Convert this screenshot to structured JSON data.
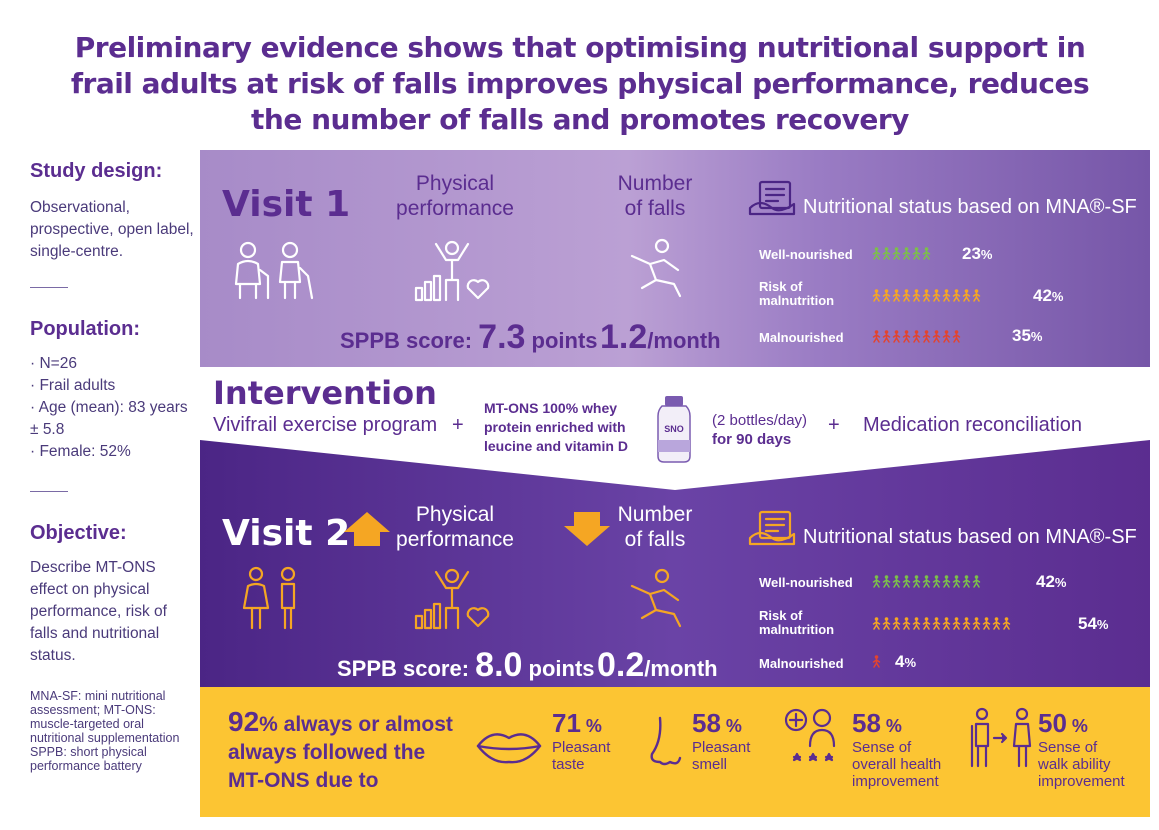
{
  "title": {
    "line1": "Preliminary evidence shows that optimising nutritional support in",
    "line2": "frail adults at risk of falls improves physical performance, reduces",
    "line3": "the number of falls and promotes recovery"
  },
  "sidebar": {
    "study_design": {
      "heading": "Study design:",
      "text": "Observational, prospective, open label, single-centre."
    },
    "population": {
      "heading": "Population:",
      "items": [
        "· N=26",
        "· Frail adults",
        "· Age (mean): 83 years ± 5.8",
        "· Female: 52%"
      ]
    },
    "objective": {
      "heading": "Objective:",
      "text": "Describe MT-ONS effect on physical performance, risk of falls and nutritional status."
    },
    "abbreviations": "MNA-SF: mini nutritional assessment; MT-ONS: muscle-targeted oral nutritional supplementation SPPB: short physical performance battery"
  },
  "visit1": {
    "label": "Visit 1",
    "physical_title_1": "Physical",
    "physical_title_2": "performance",
    "falls_title_1": "Number",
    "falls_title_2": "of falls",
    "sppb_prefix": "SPPB score: ",
    "sppb_value": "7.3",
    "sppb_unit": " points",
    "falls_value": "1.2",
    "falls_unit": "/month",
    "nutrition_title": "Nutritional status based on MNA®-SF",
    "nutrition": [
      {
        "label": "Well-nourished",
        "pct": "23",
        "count": 6
      },
      {
        "label1": "Risk of",
        "label2": "malnutrition",
        "pct": "42",
        "count": 11
      },
      {
        "label": "Malnourished",
        "pct": "35",
        "count": 9
      }
    ],
    "pct_sign": "%"
  },
  "intervention": {
    "title": "Intervention",
    "exercise": "Vivifrail exercise program",
    "plus": "+",
    "ons_1": "MT-ONS 100% whey",
    "ons_2": "protein enriched with",
    "ons_3": "leucine and vitamin D",
    "bottle_label": "SNO",
    "dose_1": "(2 bottles/day)",
    "dose_2": "for 90 days",
    "medication": "Medication reconciliation"
  },
  "visit2": {
    "label": "Visit 2",
    "physical_title_1": "Physical",
    "physical_title_2": "performance",
    "falls_title_1": "Number",
    "falls_title_2": "of falls",
    "sppb_prefix": "SPPB score: ",
    "sppb_value": "8.0",
    "sppb_unit": " points",
    "falls_value": "0.2",
    "falls_unit": "/month",
    "nutrition_title": "Nutritional status based on MNA®-SF",
    "nutrition": [
      {
        "label": "Well-nourished",
        "pct": "42",
        "count": 11
      },
      {
        "label1": "Risk of",
        "label2": "malnutrition",
        "pct": "54",
        "count": 14
      },
      {
        "label": "Malnourished",
        "pct": "4",
        "count": 1
      }
    ],
    "pct_sign": "%"
  },
  "adherence": {
    "value": "92",
    "line1_rest": "% always or almost",
    "line2": "always followed the",
    "line3": "MT-ONS due to",
    "items": [
      {
        "value": "71",
        "sign": " %",
        "label1": "Pleasant",
        "label2": "taste"
      },
      {
        "value": "58",
        "sign": " %",
        "label1": "Pleasant",
        "label2": "smell"
      },
      {
        "value": "58",
        "sign": " %",
        "label1": "Sense of",
        "label2": "overall health",
        "label3": "improvement"
      },
      {
        "value": "50",
        "sign": " %",
        "label1": "Sense of",
        "label2": "walk ability",
        "label3": "improvement"
      }
    ]
  },
  "colors": {
    "purple": "#5b2d90",
    "orange": "#f5a623",
    "green": "#7cc04a",
    "red": "#e2442f",
    "yellow": "#fcc533"
  }
}
